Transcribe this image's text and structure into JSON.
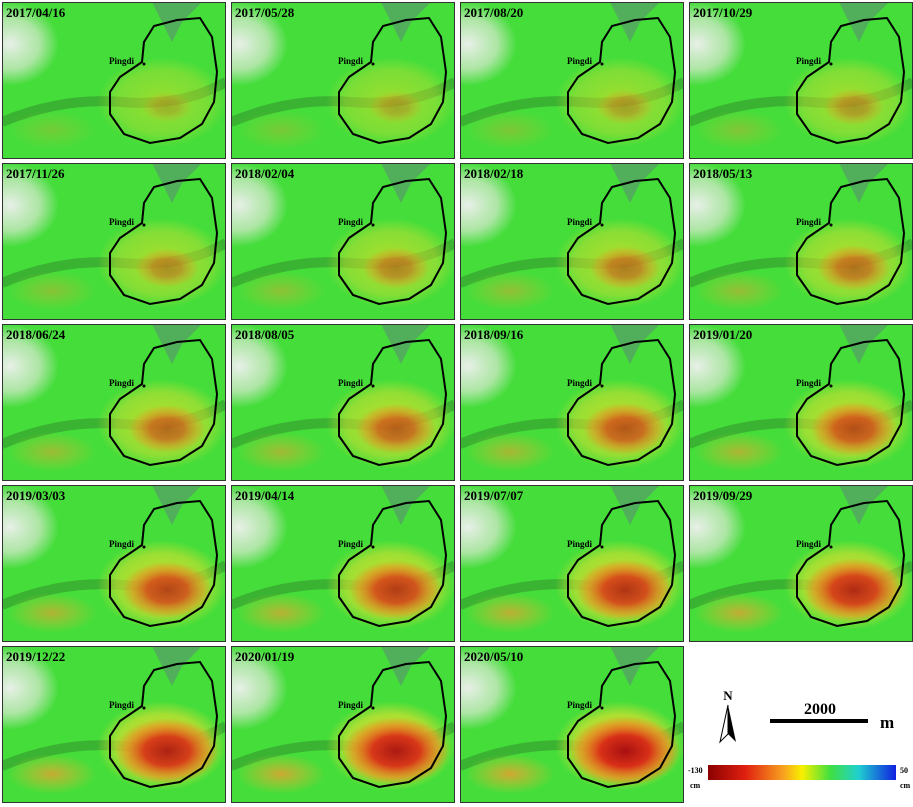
{
  "panels": [
    {
      "date": "2017/04/16",
      "label": "Pingdi"
    },
    {
      "date": "2017/05/28",
      "label": "Pingdi"
    },
    {
      "date": "2017/08/20",
      "label": "Pingdi"
    },
    {
      "date": "2017/10/29",
      "label": "Pingdi"
    },
    {
      "date": "2017/11/26",
      "label": "Pingdi"
    },
    {
      "date": "2018/02/04",
      "label": "Pingdi"
    },
    {
      "date": "2018/02/18",
      "label": "Pingdi"
    },
    {
      "date": "2018/05/13",
      "label": "Pingdi"
    },
    {
      "date": "2018/06/24",
      "label": "Pingdi"
    },
    {
      "date": "2018/08/05",
      "label": "Pingdi"
    },
    {
      "date": "2018/09/16",
      "label": "Pingdi"
    },
    {
      "date": "2019/01/20",
      "label": "Pingdi"
    },
    {
      "date": "2019/03/03",
      "label": "Pingdi"
    },
    {
      "date": "2019/04/14",
      "label": "Pingdi"
    },
    {
      "date": "2019/07/07",
      "label": "Pingdi"
    },
    {
      "date": "2019/09/29",
      "label": "Pingdi"
    },
    {
      "date": "2019/12/22",
      "label": "Pingdi"
    },
    {
      "date": "2020/01/19",
      "label": "Pingdi"
    },
    {
      "date": "2020/05/10",
      "label": "Pingdi"
    }
  ],
  "legend": {
    "north": "N",
    "scale_value": 2000,
    "scale_unit": "m",
    "colorbar_min": -130,
    "colorbar_min_unit": "cm",
    "colorbar_max": 50,
    "colorbar_max_unit": "cm"
  }
}
